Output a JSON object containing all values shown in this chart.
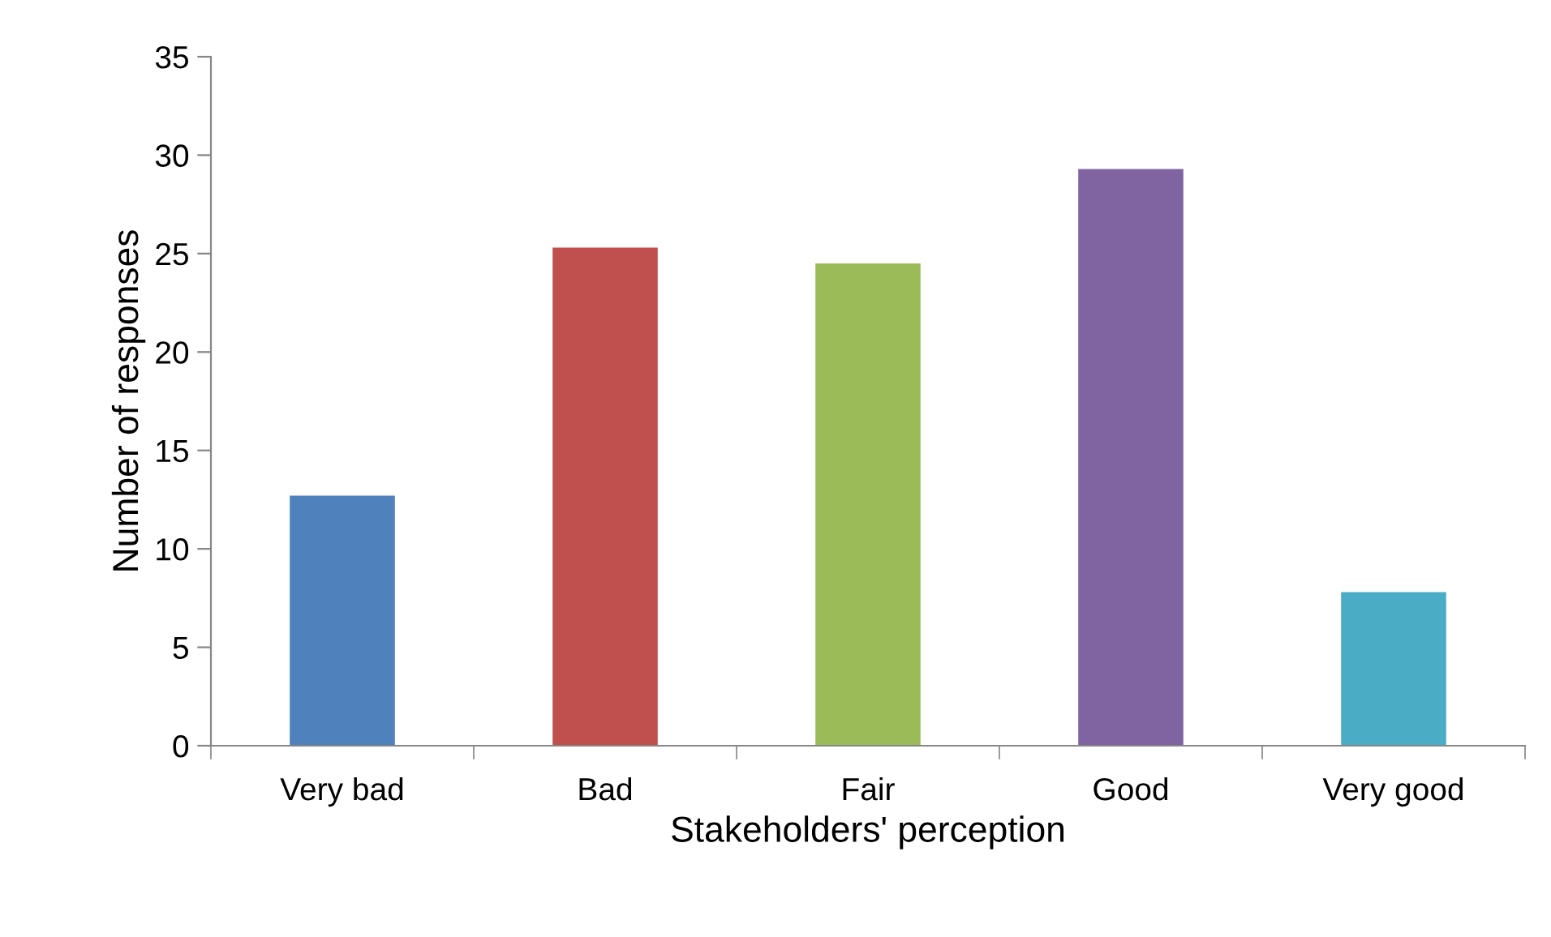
{
  "chart_data": {
    "type": "bar",
    "xlabel": "Stakeholders' perception",
    "ylabel": "Number of responses",
    "categories": [
      "Very bad",
      "Bad",
      "Fair",
      "Good",
      "Very good"
    ],
    "values": [
      12.7,
      25.3,
      24.5,
      29.3,
      7.8
    ],
    "colors": [
      "#4f81bd",
      "#c0504d",
      "#9bbb59",
      "#8064a2",
      "#4bacc6"
    ],
    "ylim": [
      0,
      35
    ],
    "yticks": [
      0,
      5,
      10,
      15,
      20,
      25,
      30,
      35
    ],
    "grid": false
  }
}
